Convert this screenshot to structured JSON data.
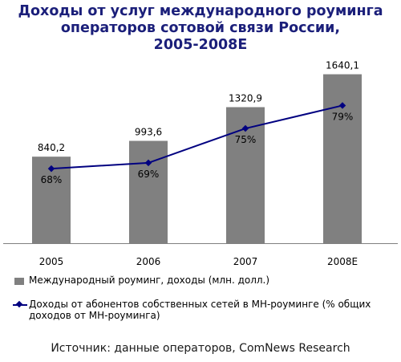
{
  "chart_data": {
    "type": "bar",
    "title_lines": [
      "Доходы от услуг международного роуминга",
      "операторов сотовой связи России,",
      "2005-2008Е"
    ],
    "categories": [
      "2005",
      "2006",
      "2007",
      "2008E"
    ],
    "series": [
      {
        "name": "Международный роуминг, доходы (млн. долл.)",
        "type": "bar",
        "values": [
          840.2,
          993.6,
          1320.9,
          1640.1
        ],
        "labels": [
          "840,2",
          "993,6",
          "1320,9",
          "1640,1"
        ],
        "color": "#808080"
      },
      {
        "name": "Доходы от абонентов собственных сетей в МН-роуминге (% общих доходов от МН-роуминга)",
        "name_lines": [
          "Доходы от абонентов собственных сетей в МН-роуминге (% общих",
          "доходов от МН-роуминга)"
        ],
        "type": "line",
        "values": [
          68,
          69,
          75,
          79
        ],
        "labels": [
          "68%",
          "69%",
          "75%",
          "79%"
        ],
        "color": "#000080"
      }
    ],
    "ylim_bar": [
      0,
      1800
    ],
    "ylim_line": [
      55,
      82
    ],
    "legend_placement": "bottom",
    "grid": false
  },
  "source": "Источник: данные операторов, ComNews Research"
}
